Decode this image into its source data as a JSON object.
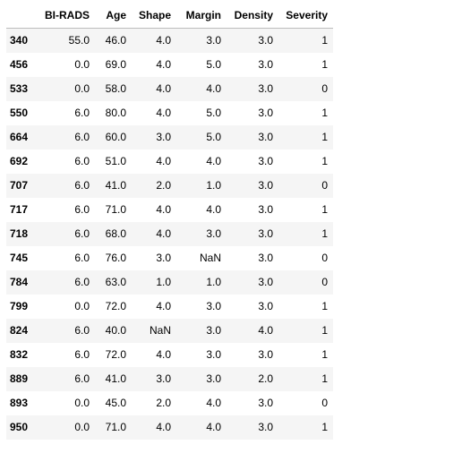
{
  "table": {
    "columns": [
      "BI-RADS",
      "Age",
      "Shape",
      "Margin",
      "Density",
      "Severity"
    ],
    "rows": [
      {
        "index": "340",
        "cells": [
          "55.0",
          "46.0",
          "4.0",
          "3.0",
          "3.0",
          "1"
        ]
      },
      {
        "index": "456",
        "cells": [
          "0.0",
          "69.0",
          "4.0",
          "5.0",
          "3.0",
          "1"
        ]
      },
      {
        "index": "533",
        "cells": [
          "0.0",
          "58.0",
          "4.0",
          "4.0",
          "3.0",
          "0"
        ]
      },
      {
        "index": "550",
        "cells": [
          "6.0",
          "80.0",
          "4.0",
          "5.0",
          "3.0",
          "1"
        ]
      },
      {
        "index": "664",
        "cells": [
          "6.0",
          "60.0",
          "3.0",
          "5.0",
          "3.0",
          "1"
        ]
      },
      {
        "index": "692",
        "cells": [
          "6.0",
          "51.0",
          "4.0",
          "4.0",
          "3.0",
          "1"
        ]
      },
      {
        "index": "707",
        "cells": [
          "6.0",
          "41.0",
          "2.0",
          "1.0",
          "3.0",
          "0"
        ]
      },
      {
        "index": "717",
        "cells": [
          "6.0",
          "71.0",
          "4.0",
          "4.0",
          "3.0",
          "1"
        ]
      },
      {
        "index": "718",
        "cells": [
          "6.0",
          "68.0",
          "4.0",
          "3.0",
          "3.0",
          "1"
        ]
      },
      {
        "index": "745",
        "cells": [
          "6.0",
          "76.0",
          "3.0",
          "NaN",
          "3.0",
          "0"
        ]
      },
      {
        "index": "784",
        "cells": [
          "6.0",
          "63.0",
          "1.0",
          "1.0",
          "3.0",
          "0"
        ]
      },
      {
        "index": "799",
        "cells": [
          "0.0",
          "72.0",
          "4.0",
          "3.0",
          "3.0",
          "1"
        ]
      },
      {
        "index": "824",
        "cells": [
          "6.0",
          "40.0",
          "NaN",
          "3.0",
          "4.0",
          "1"
        ]
      },
      {
        "index": "832",
        "cells": [
          "6.0",
          "72.0",
          "4.0",
          "3.0",
          "3.0",
          "1"
        ]
      },
      {
        "index": "889",
        "cells": [
          "6.0",
          "41.0",
          "3.0",
          "3.0",
          "2.0",
          "1"
        ]
      },
      {
        "index": "893",
        "cells": [
          "0.0",
          "45.0",
          "2.0",
          "4.0",
          "3.0",
          "0"
        ]
      },
      {
        "index": "950",
        "cells": [
          "0.0",
          "71.0",
          "4.0",
          "4.0",
          "3.0",
          "1"
        ]
      }
    ]
  }
}
